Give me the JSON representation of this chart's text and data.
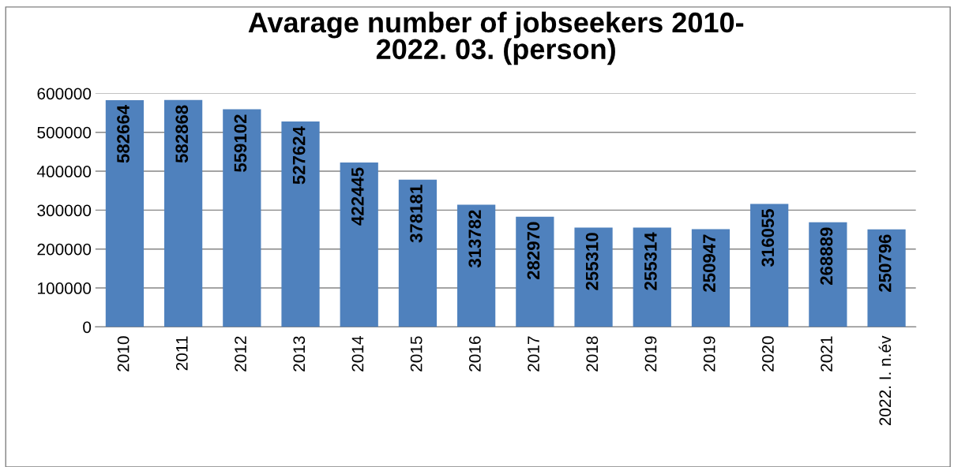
{
  "chart_data": {
    "type": "bar",
    "title": "Avarage number of jobseekers 2010-\n2022. 03. (person)",
    "categories": [
      "2010",
      "2011",
      "2012",
      "2013",
      "2014",
      "2015",
      "2016",
      "2017",
      "2018",
      "2019",
      "2019",
      "2020",
      "2021",
      "2022. I. n.év"
    ],
    "values": [
      582664,
      582868,
      559102,
      527624,
      422445,
      378181,
      313782,
      282970,
      255310,
      255314,
      250947,
      316055,
      268889,
      250796
    ],
    "color": "#4f81bd",
    "ylim": [
      0,
      600000
    ],
    "yticks": [
      0,
      100000,
      200000,
      300000,
      400000,
      500000,
      600000
    ],
    "grid": "y",
    "data_labels": true
  }
}
